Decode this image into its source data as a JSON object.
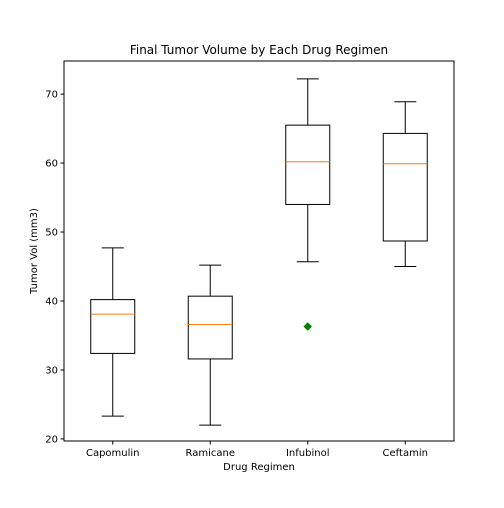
{
  "chart_data": {
    "type": "box",
    "title": "Final Tumor Volume by Each Drug Regimen",
    "xlabel": "Drug Regimen",
    "ylabel": "Tumor Vol (mm3)",
    "ylim": [
      19.7,
      74.8
    ],
    "yticks": [
      20,
      30,
      40,
      50,
      60,
      70
    ],
    "grid": false,
    "categories": [
      "Capomulin",
      "Ramicane",
      "Infubinol",
      "Ceftamin"
    ],
    "boxes": [
      {
        "category": "Capomulin",
        "whisker_low": 23.3,
        "q1": 32.4,
        "median": 38.1,
        "q3": 40.2,
        "whisker_high": 47.7,
        "outliers": []
      },
      {
        "category": "Ramicane",
        "whisker_low": 22.0,
        "q1": 31.6,
        "median": 36.6,
        "q3": 40.7,
        "whisker_high": 45.2,
        "outliers": []
      },
      {
        "category": "Infubinol",
        "whisker_low": 45.7,
        "q1": 54.0,
        "median": 60.2,
        "q3": 65.5,
        "whisker_high": 72.2,
        "outliers": [
          36.3
        ]
      },
      {
        "category": "Ceftamin",
        "whisker_low": 45.0,
        "q1": 48.7,
        "median": 59.9,
        "q3": 64.3,
        "whisker_high": 68.9,
        "outliers": []
      }
    ],
    "colors": {
      "box": "#000000",
      "median": "#ff7f0e",
      "outlier": "#008000",
      "axis": "#000000"
    }
  }
}
